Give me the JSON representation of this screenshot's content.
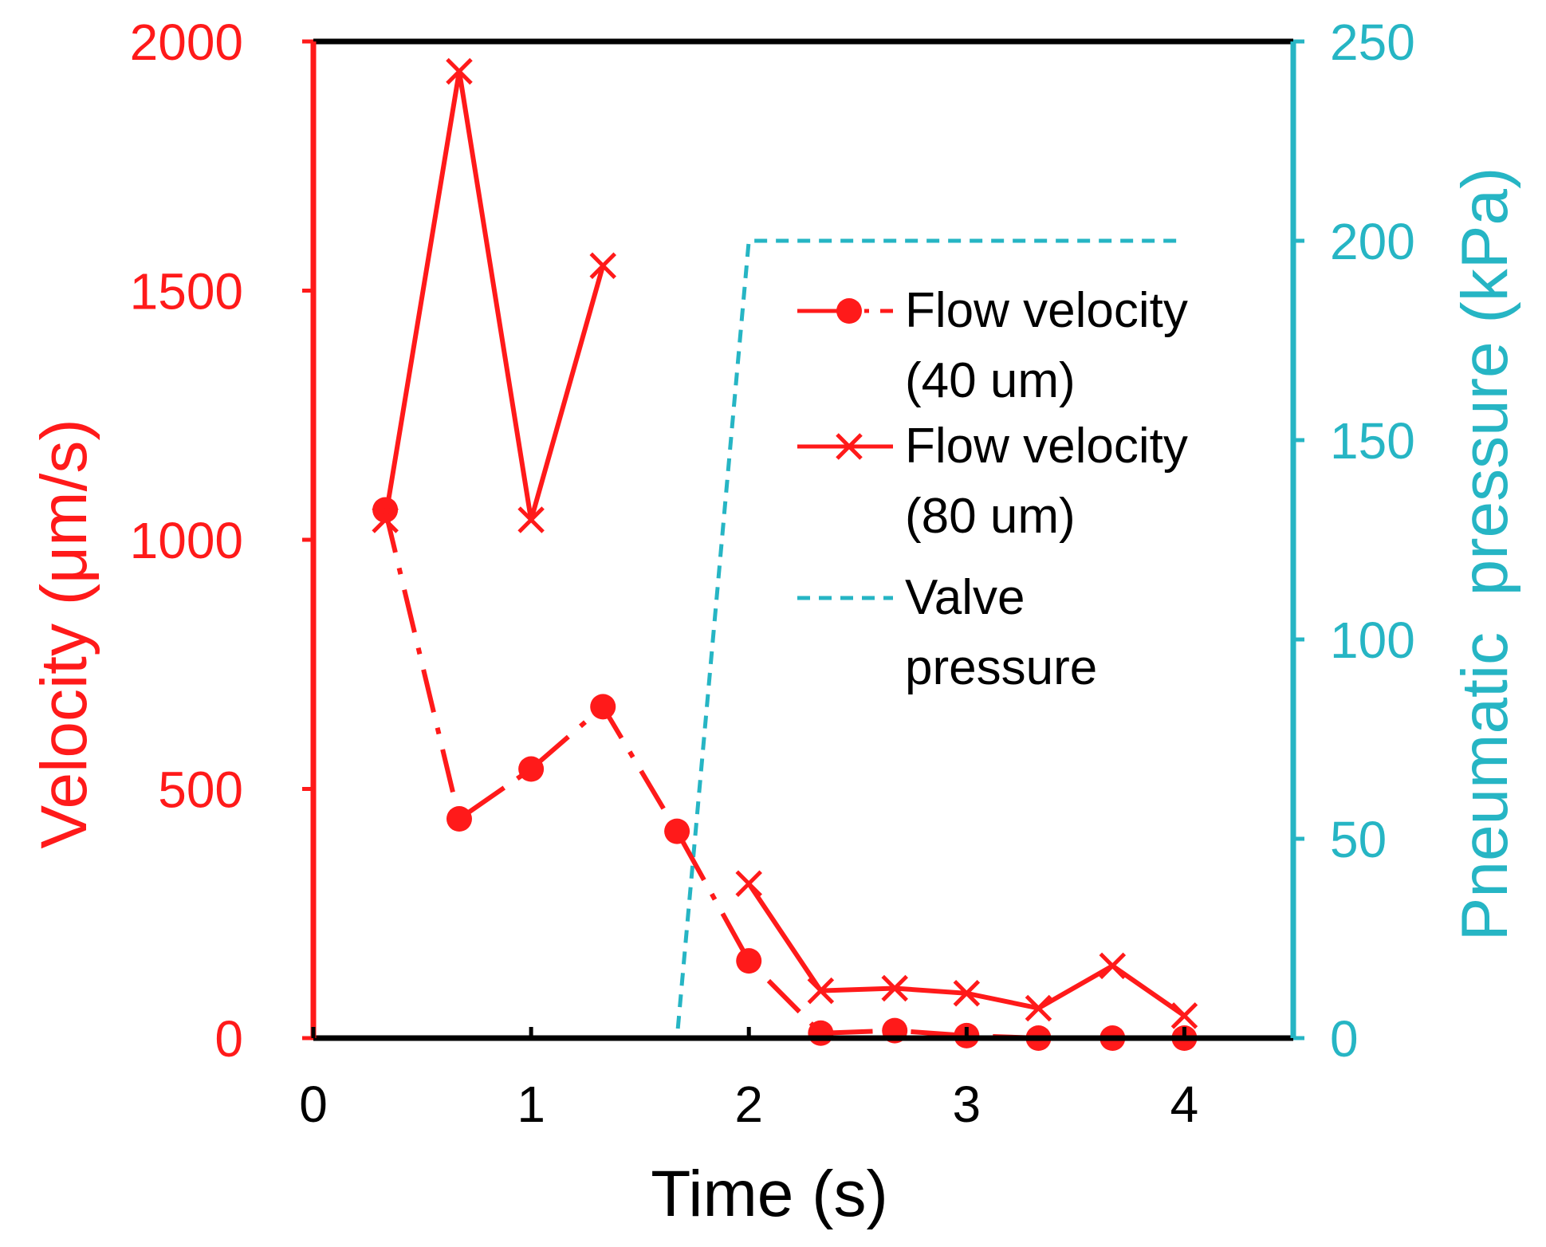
{
  "chart_data": {
    "type": "line",
    "title": "",
    "xlabel": "Time (s)",
    "ylabel": "Velocity (μm/s)",
    "y2label": "Pneumatic  pressure (kPa)",
    "xlim": [
      0,
      4.5
    ],
    "ylim": [
      0,
      2000
    ],
    "y2lim": [
      0,
      250
    ],
    "xticks": [
      0,
      1,
      2,
      3,
      4
    ],
    "yticks": [
      0,
      500,
      1000,
      1500,
      2000
    ],
    "y2ticks": [
      0,
      50,
      100,
      150,
      200,
      250
    ],
    "grid": false,
    "legend_position": "upper-right",
    "colors": {
      "velocity_axis": "#ff1a1a",
      "pressure_axis": "#26b5c4",
      "frame": "#000000"
    },
    "series": [
      {
        "name": "Flow velocity (40 um)",
        "legend_lines": [
          "Flow velocity",
          "(40 um)"
        ],
        "axis": "left",
        "marker": "circle",
        "line_style": "dash-dot",
        "color": "#ff1a1a",
        "segments": [
          {
            "x": [
              0.33,
              0.67,
              1.0,
              1.33,
              1.67,
              2.0,
              2.33,
              2.67,
              3.0,
              3.33,
              3.67,
              4.0
            ],
            "y": [
              1060,
              440,
              540,
              665,
              415,
              155,
              10,
              15,
              5,
              0,
              0,
              0
            ]
          }
        ]
      },
      {
        "name": "Flow velocity (80 um)",
        "legend_lines": [
          "Flow velocity",
          "(80 um)"
        ],
        "axis": "left",
        "marker": "x",
        "line_style": "solid",
        "color": "#ff1a1a",
        "segments": [
          {
            "x": [
              0.33,
              0.67,
              1.0,
              1.33
            ],
            "y": [
              1040,
              1940,
              1040,
              1550
            ]
          },
          {
            "x": [
              2.0,
              2.33,
              2.67,
              3.0,
              3.33,
              3.67,
              4.0
            ],
            "y": [
              310,
              95,
              100,
              90,
              60,
              145,
              45
            ]
          }
        ]
      },
      {
        "name": "Valve pressure",
        "legend_lines": [
          "Valve",
          "pressure"
        ],
        "axis": "right",
        "marker": "none",
        "line_style": "dashed",
        "color": "#26b5c4",
        "segments": [
          {
            "x": [
              0.33,
              1.67,
              2.0,
              4.0
            ],
            "y": [
              0,
              0,
              200,
              200
            ]
          }
        ]
      }
    ]
  }
}
